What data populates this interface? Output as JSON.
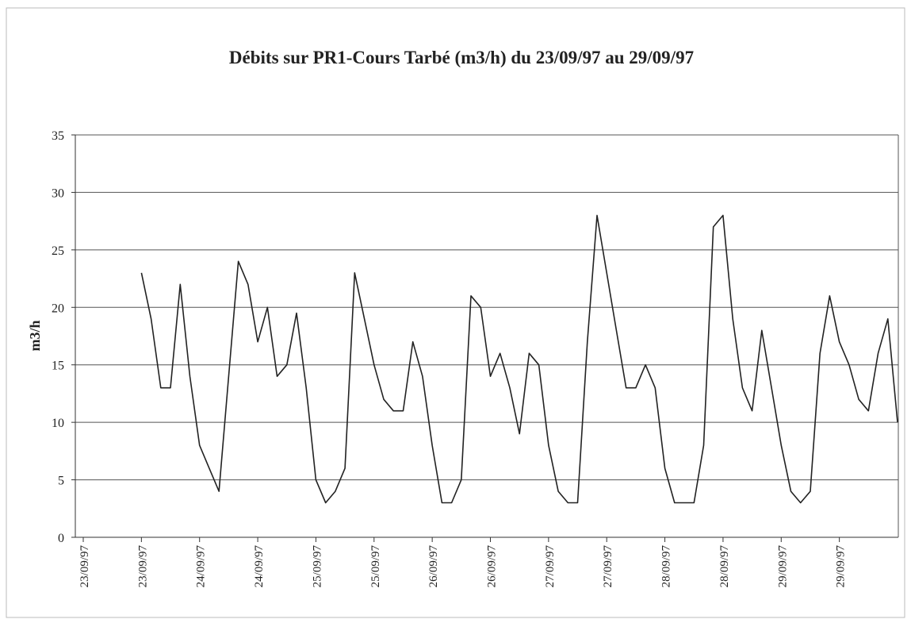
{
  "chart_data": {
    "type": "line",
    "title": "Débits sur  PR1-Cours Tarbé (m3/h)  du 23/09/97 au 29/09/97",
    "y_label": "m3/h",
    "categories": [
      "23/09/97",
      null,
      null,
      null,
      null,
      null,
      "23/09/97",
      null,
      null,
      null,
      null,
      null,
      "24/09/97",
      null,
      null,
      null,
      null,
      null,
      "24/09/97",
      null,
      null,
      null,
      null,
      null,
      "25/09/97",
      null,
      null,
      null,
      null,
      null,
      "25/09/97",
      null,
      null,
      null,
      null,
      null,
      "26/09/97",
      null,
      null,
      null,
      null,
      null,
      "26/09/97",
      null,
      null,
      null,
      null,
      null,
      "27/09/97",
      null,
      null,
      null,
      null,
      null,
      "27/09/97",
      null,
      null,
      null,
      null,
      null,
      "28/09/97",
      null,
      null,
      null,
      null,
      null,
      "28/09/97",
      null,
      null,
      null,
      null,
      null,
      "29/09/97",
      null,
      null,
      null,
      null,
      null,
      "29/09/97",
      null,
      null,
      null,
      null,
      null,
      null
    ],
    "values": [
      null,
      null,
      null,
      null,
      null,
      null,
      23,
      19,
      13,
      13,
      22,
      14,
      8,
      6,
      4,
      14,
      24,
      22,
      17,
      20,
      14,
      15,
      19.5,
      13,
      5,
      3,
      4,
      6,
      23,
      19,
      15,
      12,
      11,
      11,
      17,
      14,
      8,
      3,
      3,
      5,
      21,
      20,
      14,
      16,
      13,
      9,
      16,
      15,
      8,
      4,
      3,
      3,
      17,
      28,
      23,
      18,
      13,
      13,
      15,
      13,
      6,
      3,
      3,
      3,
      8,
      27,
      28,
      19,
      13,
      11,
      18,
      13,
      8,
      4,
      3,
      4,
      16,
      21,
      17,
      15,
      12,
      11,
      16,
      19,
      10
    ],
    "color": "#222222",
    "ylim": [
      0,
      35
    ],
    "yticks": [
      0,
      5,
      10,
      15,
      20,
      25,
      30,
      35
    ],
    "grid": true
  }
}
